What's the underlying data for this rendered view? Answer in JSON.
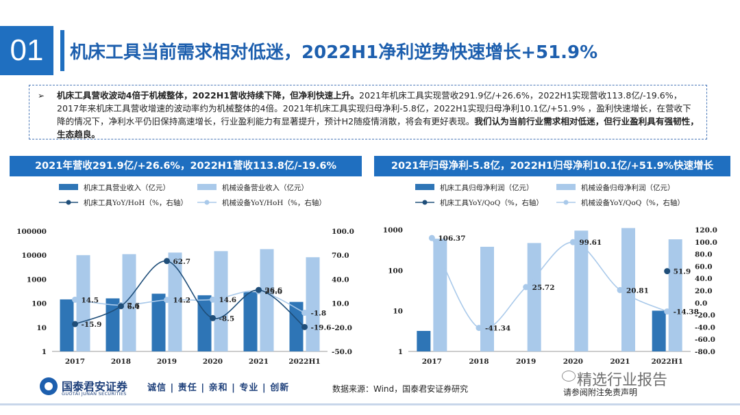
{
  "header": {
    "section_number": "01",
    "title": "机床工具当前需求相对低迷，2022H1净利逆势快速增长+51.9%"
  },
  "summary": {
    "bold_lead": "机床工具营收波动4倍于机械整体，2022H1营收持续下降，但净利快速上升。",
    "body": "2021年机床工具实现营收291.9亿/+26.6%，2022H1实现营收113.8亿/-19.6%，2017年来机床工具营收增速的波动率约为机械整体的4倍。2021年机床工具实现归母净利-5.8亿，2022H1实现归母净利10.1亿/+51.9% ，盈利快速增长，在营收下降的情况下，净利水平仍旧保持高速增长，行业盈利能力有显著提升，预计H2随疫情消散，将会有更好表现。",
    "bold_tail": "我们认为当前行业需求相对低迷，但行业盈利具有强韧性，生态趋良。"
  },
  "footer": {
    "logo_name": "国泰君安证券",
    "logo_en": "GUOTAI JUNAN SECURITIES",
    "slogan": "诚信 | 责任 | 亲和 | 专业 | 创新",
    "source": "数据来源：Wind，国泰君安证券研究",
    "disclaimer": "请参阅附注免责声明",
    "watermark": "精选行业报告"
  },
  "colors": {
    "dark_blue": "#2e75b6",
    "light_blue": "#a9c9ea",
    "line_dark": "#1f4e79",
    "line_light": "#a9c9ea",
    "header_bg": "#1f6fc0"
  },
  "chart_data": [
    {
      "type": "bar",
      "title": "2021年营收291.9亿/+26.6%，2022H1营收113.8亿/-19.6%",
      "categories": [
        "2017",
        "2018",
        "2019",
        "2020",
        "2021",
        "2022H1"
      ],
      "y_scale": "log",
      "ylim": [
        1,
        100000
      ],
      "y_ticks": [
        "1",
        "10",
        "100",
        "1000",
        "10000",
        "100000"
      ],
      "y2lim": [
        -50,
        100
      ],
      "y2_ticks": [
        "-50.0",
        "-20.0",
        "10.0",
        "40.0",
        "70.0",
        "100.0"
      ],
      "legend": [
        "机床工具营业收入（亿元）",
        "机械设备营业收入（亿元）",
        "机床工具YoY/HoH（%，右轴）",
        "机械设备YoY/HoH（%，右轴）"
      ],
      "legend_position": "top",
      "series": [
        {
          "name": "机床工具营业收入（亿元）",
          "kind": "bar",
          "axis": "left",
          "values": [
            145,
            160,
            250,
            215,
            292,
            114
          ]
        },
        {
          "name": "机械设备营业收入（亿元）",
          "kind": "bar",
          "axis": "left",
          "values": [
            10000,
            11000,
            12800,
            14700,
            17800,
            8200
          ]
        },
        {
          "name": "机床工具YoY/HoH（%，右轴）",
          "kind": "line",
          "axis": "right",
          "values": [
            -15.9,
            6.4,
            62.7,
            -8.5,
            26.6,
            -19.6
          ]
        },
        {
          "name": "机械设备YoY/HoH（%，右轴）",
          "kind": "line",
          "axis": "right",
          "values": [
            14.5,
            7.6,
            14.2,
            14.6,
            25.0,
            -1.8
          ]
        }
      ],
      "labels": {
        "dark": [
          "-15.9",
          "6.4",
          "62.7",
          "-8.5",
          "26.6",
          "-19.6"
        ],
        "light": [
          "14.5",
          "7.6",
          "14.2",
          "14.6",
          "25.0",
          "-1.8"
        ]
      }
    },
    {
      "type": "bar",
      "title": "2021年归母净利-5.8亿，2022H1归母净利10.1亿/+51.9%快速增长",
      "categories": [
        "2017",
        "2018",
        "2019",
        "2020",
        "2021",
        "2022H1"
      ],
      "y_scale": "log",
      "ylim": [
        1,
        1000
      ],
      "y_ticks": [
        "1",
        "10",
        "100",
        "1000"
      ],
      "y2lim": [
        -80,
        120
      ],
      "y2_ticks": [
        "-80.0",
        "-60.0",
        "-40.0",
        "-20.0",
        "0.0",
        "20.0",
        "40.0",
        "60.0",
        "80.0",
        "100.0",
        "120.0"
      ],
      "legend": [
        "机床工具归母净利润（亿元）",
        "机械设备归母净利润（亿元）",
        "机床工具YoY/QoQ（%，右轴）",
        "机械设备YoY/QoQ（%，右轴）"
      ],
      "legend_position": "top",
      "series": [
        {
          "name": "机床工具归母净利润（亿元）",
          "kind": "bar",
          "axis": "left",
          "values": [
            3.2,
            null,
            null,
            null,
            null,
            10.1
          ]
        },
        {
          "name": "机械设备归母净利润（亿元）",
          "kind": "bar",
          "axis": "left",
          "values": [
            600,
            380,
            470,
            950,
            1100,
            580
          ]
        },
        {
          "name": "机床工具YoY/QoQ（%，右轴）",
          "kind": "line",
          "axis": "right",
          "values": [
            null,
            null,
            null,
            null,
            null,
            51.9
          ]
        },
        {
          "name": "机械设备YoY/QoQ（%，右轴）",
          "kind": "line",
          "axis": "right",
          "values": [
            106.37,
            -41.34,
            25.72,
            99.61,
            20.81,
            -14.38
          ]
        }
      ],
      "labels": {
        "dark": [
          "",
          "",
          "",
          "",
          "",
          "51.9"
        ],
        "light": [
          "106.37",
          "-41.34",
          "25.72",
          "99.61",
          "20.81",
          "-14.38"
        ]
      }
    }
  ]
}
